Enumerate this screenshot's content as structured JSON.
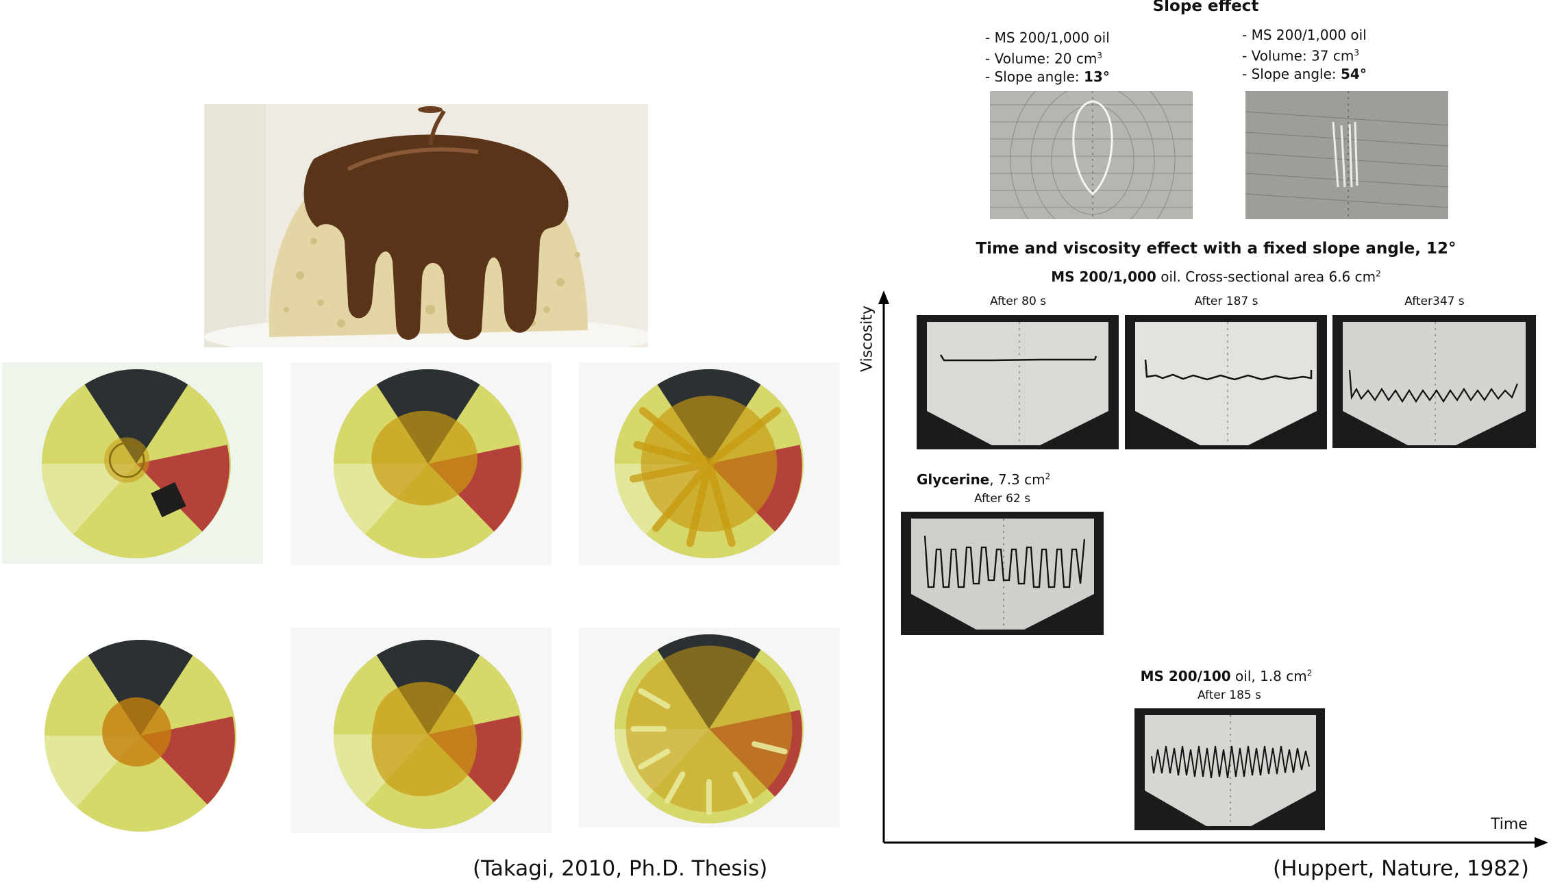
{
  "slope": {
    "title": "Slope effect",
    "left": {
      "oil": "- MS 200/1,000 oil",
      "volume_prefix": "- Volume: 20 cm",
      "volume_sup": "3",
      "angle_prefix": "- Slope angle: ",
      "angle_value": "13°"
    },
    "right": {
      "oil": "- MS 200/1,000 oil",
      "volume_prefix": "- Volume: 37 cm",
      "volume_sup": "3",
      "angle_prefix": "- Slope angle: ",
      "angle_value": "54°"
    }
  },
  "time_viscosity": {
    "title": "Time and viscosity effect with a fixed slope angle, 12°",
    "row1": {
      "oil_bold": "MS 200/1,000",
      "oil_rest": " oil. Cross-sectional area 6.6 cm",
      "sup": "2",
      "after": [
        "After 80 s",
        "After 187 s",
        "After347 s"
      ]
    },
    "row2": {
      "name_bold": "Glycerine",
      "rest": ", 7.3 cm",
      "sup": "2",
      "after": "After 62 s"
    },
    "row3": {
      "name_bold": "MS 200/100",
      "rest": " oil, 1.8 cm",
      "sup": "2",
      "after": "After 185 s"
    },
    "y_axis": "Viscosity",
    "x_axis": "Time"
  },
  "citations": {
    "left": "(Takagi, 2010, Ph.D. Thesis)",
    "right": "(Huppert, Nature, 1982)"
  },
  "colors": {
    "chocolate": "#5a3418",
    "sponge": "#e6d9a9",
    "plate_yellow": "#d6d86a",
    "plate_red": "#b4423a",
    "plate_dark": "#2b3033",
    "oil_amber": "#c79a10"
  }
}
